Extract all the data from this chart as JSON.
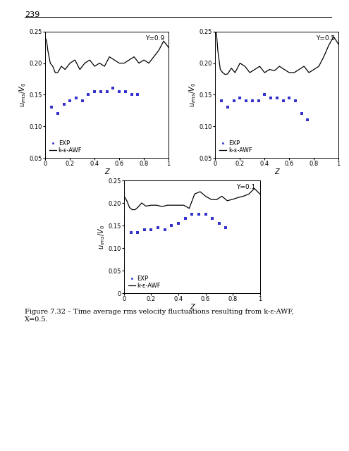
{
  "page_number": "239",
  "figure_label": "Figure 7.32",
  "figure_caption": " – Time average rms velocity fluctuations resulting from k-ε-AWF,\nX=0.5.",
  "ylabel": "$u_{rms}/V_0$",
  "xlabel": "Z",
  "subplots": [
    {
      "title": "Y=0.9",
      "ylim": [
        0.05,
        0.25
      ],
      "xlim": [
        0,
        1
      ],
      "yticks": [
        0.05,
        0.1,
        0.15,
        0.2,
        0.25
      ],
      "ytick_labels": [
        "0.05",
        "0.10",
        "0.15",
        "0.20",
        "0.25"
      ],
      "xticks": [
        0,
        0.2,
        0.4,
        0.6,
        0.8,
        1.0
      ],
      "xtick_labels": [
        "0",
        "0.2",
        "0.4",
        "0.6",
        "0.8",
        "1"
      ],
      "exp_x": [
        0.05,
        0.1,
        0.15,
        0.2,
        0.25,
        0.3,
        0.35,
        0.4,
        0.45,
        0.5,
        0.55,
        0.6,
        0.65,
        0.7,
        0.75
      ],
      "exp_y": [
        0.13,
        0.12,
        0.135,
        0.14,
        0.145,
        0.14,
        0.15,
        0.155,
        0.155,
        0.155,
        0.16,
        0.155,
        0.155,
        0.15,
        0.15
      ],
      "line_x": [
        0.0,
        0.01,
        0.02,
        0.04,
        0.06,
        0.08,
        0.1,
        0.13,
        0.16,
        0.2,
        0.24,
        0.28,
        0.32,
        0.36,
        0.4,
        0.44,
        0.48,
        0.52,
        0.56,
        0.6,
        0.64,
        0.68,
        0.72,
        0.76,
        0.8,
        0.84,
        0.88,
        0.92,
        0.96,
        1.0
      ],
      "line_y": [
        0.24,
        0.235,
        0.22,
        0.2,
        0.195,
        0.185,
        0.185,
        0.195,
        0.19,
        0.2,
        0.205,
        0.19,
        0.2,
        0.205,
        0.195,
        0.2,
        0.195,
        0.21,
        0.205,
        0.2,
        0.2,
        0.205,
        0.21,
        0.2,
        0.205,
        0.2,
        0.21,
        0.22,
        0.235,
        0.225
      ]
    },
    {
      "title": "Y=0.5",
      "ylim": [
        0.05,
        0.25
      ],
      "xlim": [
        0,
        1
      ],
      "yticks": [
        0.05,
        0.1,
        0.15,
        0.2,
        0.25
      ],
      "ytick_labels": [
        "0.05",
        "0.10",
        "0.15",
        "0.20",
        "0.25"
      ],
      "xticks": [
        0,
        0.2,
        0.4,
        0.6,
        0.8,
        1.0
      ],
      "xtick_labels": [
        "0",
        "0.2",
        "0.4",
        "0.6",
        "0.8",
        "1"
      ],
      "exp_x": [
        0.05,
        0.1,
        0.15,
        0.2,
        0.25,
        0.3,
        0.35,
        0.4,
        0.45,
        0.5,
        0.55,
        0.6,
        0.65,
        0.7,
        0.75
      ],
      "exp_y": [
        0.14,
        0.13,
        0.14,
        0.145,
        0.14,
        0.14,
        0.14,
        0.15,
        0.145,
        0.145,
        0.14,
        0.145,
        0.14,
        0.12,
        0.11
      ],
      "line_x": [
        0.0,
        0.01,
        0.02,
        0.04,
        0.06,
        0.08,
        0.1,
        0.13,
        0.16,
        0.2,
        0.24,
        0.28,
        0.32,
        0.36,
        0.4,
        0.44,
        0.48,
        0.52,
        0.56,
        0.6,
        0.64,
        0.68,
        0.72,
        0.76,
        0.8,
        0.84,
        0.88,
        0.92,
        0.96,
        1.0
      ],
      "line_y": [
        0.255,
        0.245,
        0.22,
        0.19,
        0.185,
        0.182,
        0.183,
        0.192,
        0.185,
        0.2,
        0.195,
        0.185,
        0.19,
        0.195,
        0.185,
        0.19,
        0.188,
        0.195,
        0.19,
        0.185,
        0.185,
        0.19,
        0.195,
        0.185,
        0.19,
        0.195,
        0.21,
        0.228,
        0.242,
        0.23
      ]
    },
    {
      "title": "Y=0.1",
      "ylim": [
        0,
        0.25
      ],
      "xlim": [
        0,
        1
      ],
      "yticks": [
        0,
        0.05,
        0.1,
        0.15,
        0.2,
        0.25
      ],
      "ytick_labels": [
        "0",
        "0.05",
        "0.10",
        "0.15",
        "0.20",
        "0.25"
      ],
      "xticks": [
        0,
        0.2,
        0.4,
        0.6,
        0.8,
        1.0
      ],
      "xtick_labels": [
        "0",
        "0.2",
        "0.4",
        "0.6",
        "0.8",
        "1"
      ],
      "exp_x": [
        0.05,
        0.1,
        0.15,
        0.2,
        0.25,
        0.3,
        0.35,
        0.4,
        0.45,
        0.5,
        0.55,
        0.6,
        0.65,
        0.7,
        0.75
      ],
      "exp_y": [
        0.135,
        0.135,
        0.14,
        0.14,
        0.145,
        0.14,
        0.15,
        0.155,
        0.165,
        0.175,
        0.175,
        0.175,
        0.165,
        0.155,
        0.145
      ],
      "line_x": [
        0.0,
        0.01,
        0.02,
        0.04,
        0.06,
        0.08,
        0.1,
        0.13,
        0.16,
        0.2,
        0.24,
        0.28,
        0.32,
        0.36,
        0.4,
        0.44,
        0.48,
        0.52,
        0.56,
        0.6,
        0.64,
        0.68,
        0.72,
        0.76,
        0.8,
        0.84,
        0.88,
        0.92,
        0.96,
        1.0
      ],
      "line_y": [
        0.215,
        0.21,
        0.205,
        0.19,
        0.185,
        0.185,
        0.19,
        0.2,
        0.193,
        0.195,
        0.195,
        0.192,
        0.195,
        0.195,
        0.195,
        0.195,
        0.188,
        0.22,
        0.225,
        0.215,
        0.208,
        0.207,
        0.215,
        0.205,
        0.208,
        0.212,
        0.215,
        0.22,
        0.232,
        0.22
      ]
    }
  ],
  "exp_color": "#3333cc",
  "line_color": "#000000",
  "marker": "s",
  "markersize": 3,
  "legend_entries": [
    "EXP",
    "k-ε-AWF"
  ],
  "background_color": "#ffffff",
  "tick_fontsize": 6,
  "label_fontsize": 7,
  "legend_fontsize": 6,
  "title_fontsize": 6.5
}
